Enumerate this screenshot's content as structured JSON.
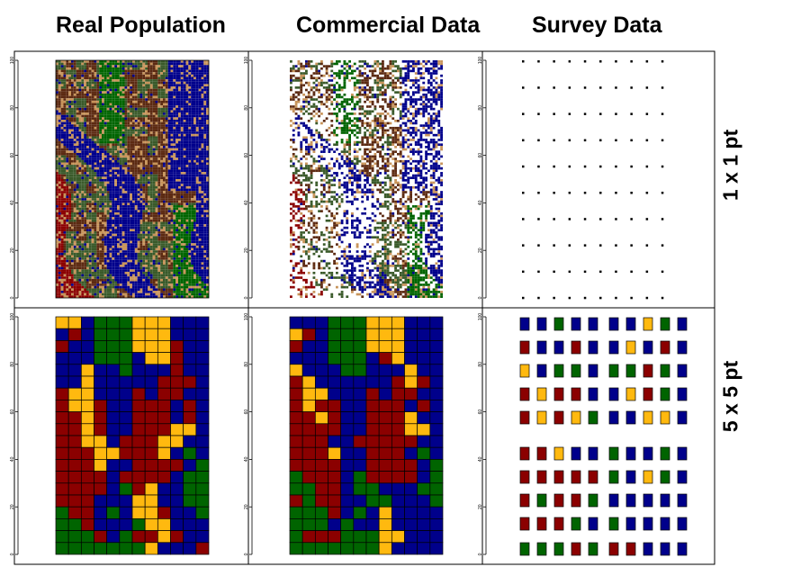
{
  "chart_data": {
    "type": "heatmap",
    "colors": {
      "navy": "#00008b",
      "darkred": "#8b0000",
      "darkgreen": "#006400",
      "orange": "#ffb90f",
      "brown": "#5c2a12",
      "tan": "#c8945a",
      "olive": "#3a5a2a",
      "white": "#ffffff"
    },
    "columns": [
      "Real Population",
      "Commercial Data",
      "Survey Data"
    ],
    "rows": [
      "1 x 1 pt",
      "5 x 5 pt"
    ],
    "y_ticks": [
      "0",
      "20",
      "40",
      "60",
      "80",
      "100"
    ],
    "ylim": [
      0,
      100
    ],
    "panels": [
      {
        "row": 0,
        "col": 0,
        "kind": "fine-raster",
        "nx": 60,
        "ny": 100,
        "fill": "full"
      },
      {
        "row": 0,
        "col": 1,
        "kind": "fine-raster",
        "nx": 60,
        "ny": 100,
        "fill": "sparse"
      },
      {
        "row": 0,
        "col": 2,
        "kind": "survey-points",
        "nx": 10,
        "ny": 10
      },
      {
        "row": 1,
        "col": 0,
        "kind": "coarse-raster",
        "nx": 12,
        "ny": 20
      },
      {
        "row": 1,
        "col": 1,
        "kind": "coarse-raster",
        "nx": 12,
        "ny": 20
      },
      {
        "row": 1,
        "col": 2,
        "kind": "survey-blocks",
        "nx": 10,
        "ny": 10
      }
    ],
    "coarse_real": [
      "OONGGGOOOBBB",
      "BRNGGGOOOBBB",
      "RBBGGGOOORBB",
      "BBBGGGBOORBB",
      "BBOBBGBBBRBB",
      "BBOBBBBBRRRB",
      "ROOBBBRBRRBB",
      "ROORBBRRRBRB",
      "RRORBBRRRBRB",
      "RRORBBRRROOB",
      "RROOBRRROOBB",
      "RRROORRROBGB",
      "RRROBBRRRRBG",
      "RRRRBRRRRBGG",
      "RRRRBGROBBGG",
      "RRRBBBOOBBGG",
      "GRRBGBOORBBG",
      "GGRBBBGOOBBB",
      "GGGRBGRRORBB",
      "GGGGGGGOBBBR"
    ],
    "coarse_commercial": [
      "BBBGGGOOOBBB",
      "ORBGGGOOOBBB",
      "RBBGGGOOOBBB",
      "BBBGGGBROBBB",
      "OBBBGGBBBOBB",
      "ROBBBBBBRORB",
      "ROOBBBRBRRBB",
      "RORRBBRRRBRB",
      "RRORBBRRROBB",
      "RRRRBBRRROOB",
      "RRRBBRRRRRBB",
      "RRROBBRRRBGB",
      "RRRRBBRRRRBG",
      "GRRRBGRRRRBG",
      "GGRRBGGBBBGG",
      "RGRRBBGGBBBG",
      "GGGRBGBOBBBB",
      "GGGBGBBOBBBB",
      "GRRRGGGOOBBB",
      "GGGGGGGOBBBB"
    ],
    "survey_blocks": [
      "BBGBB BBOGB",
      "RBBRB BOBRB",
      "OBGGB GGRGB",
      "RORRB BORGB",
      "ROROG BBOOB",
      "RROBB GBBGB",
      "RRRRR GBOGB",
      "RGRRG BBBBB",
      "RRRGB GBBBB",
      "GGGRG RRBBB"
    ]
  }
}
